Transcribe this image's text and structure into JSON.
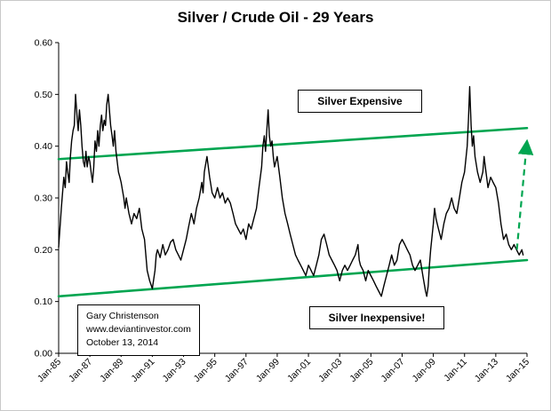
{
  "page": {
    "title": "Silver / Crude Oil - 29 Years"
  },
  "annotations": {
    "expensive": "Silver Expensive",
    "inexpensive": "Silver Inexpensive!",
    "credit": [
      "Gary Christenson",
      "www.deviantinvestor.com",
      "October 13, 2014"
    ]
  },
  "colors": {
    "line": "#000000",
    "trend": "#00A550",
    "axis": "#000000",
    "border": "#c9c9c9"
  },
  "chart_data": {
    "type": "line",
    "title": "Silver / Crude Oil - 29 Years",
    "xlabel": "",
    "ylabel": "",
    "xlim": [
      1985,
      2015
    ],
    "ylim": [
      0,
      0.6
    ],
    "grid": false,
    "legend": "none",
    "x_ticks": [
      "Jan-85",
      "Jan-87",
      "Jan-89",
      "Jan-91",
      "Jan-93",
      "Jan-95",
      "Jan-97",
      "Jan-99",
      "Jan-01",
      "Jan-03",
      "Jan-05",
      "Jan-07",
      "Jan-09",
      "Jan-11",
      "Jan-13",
      "Jan-15"
    ],
    "x_tick_years": [
      1985,
      1987,
      1989,
      1991,
      1993,
      1995,
      1997,
      1999,
      2001,
      2003,
      2005,
      2007,
      2009,
      2011,
      2013,
      2015
    ],
    "y_ticks": [
      "0.00",
      "0.10",
      "0.20",
      "0.30",
      "0.40",
      "0.50",
      "0.60"
    ],
    "series": [
      {
        "name": "Silver / Crude Oil ratio",
        "points": [
          [
            1985.0,
            0.205
          ],
          [
            1985.08,
            0.24
          ],
          [
            1985.17,
            0.28
          ],
          [
            1985.25,
            0.31
          ],
          [
            1985.33,
            0.34
          ],
          [
            1985.42,
            0.32
          ],
          [
            1985.5,
            0.37
          ],
          [
            1985.58,
            0.35
          ],
          [
            1985.67,
            0.33
          ],
          [
            1985.75,
            0.38
          ],
          [
            1985.83,
            0.41
          ],
          [
            1985.92,
            0.43
          ],
          [
            1986.0,
            0.44
          ],
          [
            1986.08,
            0.5
          ],
          [
            1986.17,
            0.46
          ],
          [
            1986.25,
            0.43
          ],
          [
            1986.33,
            0.47
          ],
          [
            1986.42,
            0.44
          ],
          [
            1986.5,
            0.4
          ],
          [
            1986.58,
            0.37
          ],
          [
            1986.67,
            0.36
          ],
          [
            1986.75,
            0.39
          ],
          [
            1986.83,
            0.36
          ],
          [
            1986.92,
            0.38
          ],
          [
            1987.0,
            0.37
          ],
          [
            1987.08,
            0.35
          ],
          [
            1987.17,
            0.33
          ],
          [
            1987.25,
            0.36
          ],
          [
            1987.33,
            0.41
          ],
          [
            1987.42,
            0.39
          ],
          [
            1987.5,
            0.43
          ],
          [
            1987.58,
            0.4
          ],
          [
            1987.67,
            0.44
          ],
          [
            1987.75,
            0.46
          ],
          [
            1987.83,
            0.43
          ],
          [
            1987.92,
            0.45
          ],
          [
            1988.0,
            0.44
          ],
          [
            1988.08,
            0.48
          ],
          [
            1988.17,
            0.5
          ],
          [
            1988.25,
            0.47
          ],
          [
            1988.33,
            0.44
          ],
          [
            1988.42,
            0.42
          ],
          [
            1988.5,
            0.4
          ],
          [
            1988.58,
            0.43
          ],
          [
            1988.67,
            0.39
          ],
          [
            1988.75,
            0.37
          ],
          [
            1988.83,
            0.35
          ],
          [
            1988.92,
            0.34
          ],
          [
            1989.0,
            0.33
          ],
          [
            1989.17,
            0.3
          ],
          [
            1989.25,
            0.28
          ],
          [
            1989.33,
            0.3
          ],
          [
            1989.5,
            0.27
          ],
          [
            1989.67,
            0.25
          ],
          [
            1989.83,
            0.27
          ],
          [
            1990.0,
            0.26
          ],
          [
            1990.17,
            0.28
          ],
          [
            1990.33,
            0.24
          ],
          [
            1990.5,
            0.22
          ],
          [
            1990.67,
            0.16
          ],
          [
            1990.83,
            0.14
          ],
          [
            1991.0,
            0.125
          ],
          [
            1991.17,
            0.16
          ],
          [
            1991.25,
            0.19
          ],
          [
            1991.33,
            0.2
          ],
          [
            1991.5,
            0.185
          ],
          [
            1991.67,
            0.21
          ],
          [
            1991.83,
            0.19
          ],
          [
            1992.0,
            0.2
          ],
          [
            1992.17,
            0.215
          ],
          [
            1992.33,
            0.22
          ],
          [
            1992.5,
            0.2
          ],
          [
            1992.67,
            0.19
          ],
          [
            1992.83,
            0.18
          ],
          [
            1993.0,
            0.2
          ],
          [
            1993.17,
            0.22
          ],
          [
            1993.33,
            0.245
          ],
          [
            1993.5,
            0.27
          ],
          [
            1993.67,
            0.25
          ],
          [
            1993.83,
            0.28
          ],
          [
            1994.0,
            0.3
          ],
          [
            1994.17,
            0.33
          ],
          [
            1994.25,
            0.31
          ],
          [
            1994.33,
            0.35
          ],
          [
            1994.5,
            0.38
          ],
          [
            1994.67,
            0.34
          ],
          [
            1994.83,
            0.31
          ],
          [
            1995.0,
            0.3
          ],
          [
            1995.17,
            0.32
          ],
          [
            1995.33,
            0.3
          ],
          [
            1995.5,
            0.31
          ],
          [
            1995.67,
            0.29
          ],
          [
            1995.83,
            0.3
          ],
          [
            1996.0,
            0.29
          ],
          [
            1996.17,
            0.27
          ],
          [
            1996.33,
            0.25
          ],
          [
            1996.5,
            0.24
          ],
          [
            1996.67,
            0.23
          ],
          [
            1996.83,
            0.24
          ],
          [
            1997.0,
            0.22
          ],
          [
            1997.17,
            0.25
          ],
          [
            1997.33,
            0.24
          ],
          [
            1997.5,
            0.26
          ],
          [
            1997.67,
            0.28
          ],
          [
            1997.83,
            0.32
          ],
          [
            1998.0,
            0.36
          ],
          [
            1998.08,
            0.4
          ],
          [
            1998.17,
            0.42
          ],
          [
            1998.25,
            0.39
          ],
          [
            1998.33,
            0.43
          ],
          [
            1998.42,
            0.47
          ],
          [
            1998.5,
            0.42
          ],
          [
            1998.58,
            0.4
          ],
          [
            1998.67,
            0.41
          ],
          [
            1998.75,
            0.38
          ],
          [
            1998.83,
            0.36
          ],
          [
            1999.0,
            0.38
          ],
          [
            1999.17,
            0.34
          ],
          [
            1999.33,
            0.3
          ],
          [
            1999.5,
            0.27
          ],
          [
            1999.67,
            0.25
          ],
          [
            1999.83,
            0.23
          ],
          [
            2000.0,
            0.21
          ],
          [
            2000.17,
            0.19
          ],
          [
            2000.33,
            0.18
          ],
          [
            2000.5,
            0.17
          ],
          [
            2000.67,
            0.16
          ],
          [
            2000.83,
            0.15
          ],
          [
            2001.0,
            0.17
          ],
          [
            2001.17,
            0.16
          ],
          [
            2001.33,
            0.15
          ],
          [
            2001.5,
            0.17
          ],
          [
            2001.67,
            0.19
          ],
          [
            2001.83,
            0.22
          ],
          [
            2002.0,
            0.23
          ],
          [
            2002.17,
            0.21
          ],
          [
            2002.33,
            0.19
          ],
          [
            2002.5,
            0.18
          ],
          [
            2002.67,
            0.17
          ],
          [
            2002.83,
            0.16
          ],
          [
            2003.0,
            0.14
          ],
          [
            2003.17,
            0.16
          ],
          [
            2003.33,
            0.17
          ],
          [
            2003.5,
            0.16
          ],
          [
            2003.67,
            0.17
          ],
          [
            2003.83,
            0.18
          ],
          [
            2004.0,
            0.19
          ],
          [
            2004.17,
            0.21
          ],
          [
            2004.25,
            0.18
          ],
          [
            2004.33,
            0.17
          ],
          [
            2004.5,
            0.16
          ],
          [
            2004.67,
            0.14
          ],
          [
            2004.83,
            0.16
          ],
          [
            2005.0,
            0.15
          ],
          [
            2005.17,
            0.14
          ],
          [
            2005.33,
            0.13
          ],
          [
            2005.5,
            0.12
          ],
          [
            2005.67,
            0.11
          ],
          [
            2005.83,
            0.13
          ],
          [
            2006.0,
            0.15
          ],
          [
            2006.17,
            0.17
          ],
          [
            2006.33,
            0.19
          ],
          [
            2006.5,
            0.17
          ],
          [
            2006.67,
            0.18
          ],
          [
            2006.83,
            0.21
          ],
          [
            2007.0,
            0.22
          ],
          [
            2007.17,
            0.21
          ],
          [
            2007.33,
            0.2
          ],
          [
            2007.5,
            0.19
          ],
          [
            2007.67,
            0.17
          ],
          [
            2007.83,
            0.16
          ],
          [
            2008.0,
            0.17
          ],
          [
            2008.17,
            0.18
          ],
          [
            2008.33,
            0.15
          ],
          [
            2008.5,
            0.12
          ],
          [
            2008.58,
            0.11
          ],
          [
            2008.67,
            0.13
          ],
          [
            2008.75,
            0.17
          ],
          [
            2008.83,
            0.2
          ],
          [
            2009.0,
            0.25
          ],
          [
            2009.08,
            0.28
          ],
          [
            2009.17,
            0.26
          ],
          [
            2009.33,
            0.24
          ],
          [
            2009.5,
            0.22
          ],
          [
            2009.67,
            0.25
          ],
          [
            2009.83,
            0.27
          ],
          [
            2010.0,
            0.28
          ],
          [
            2010.17,
            0.3
          ],
          [
            2010.33,
            0.28
          ],
          [
            2010.5,
            0.27
          ],
          [
            2010.67,
            0.3
          ],
          [
            2010.83,
            0.33
          ],
          [
            2011.0,
            0.35
          ],
          [
            2011.17,
            0.4
          ],
          [
            2011.25,
            0.45
          ],
          [
            2011.33,
            0.515
          ],
          [
            2011.42,
            0.44
          ],
          [
            2011.5,
            0.4
          ],
          [
            2011.58,
            0.42
          ],
          [
            2011.67,
            0.38
          ],
          [
            2011.83,
            0.35
          ],
          [
            2012.0,
            0.33
          ],
          [
            2012.17,
            0.35
          ],
          [
            2012.25,
            0.38
          ],
          [
            2012.33,
            0.36
          ],
          [
            2012.5,
            0.32
          ],
          [
            2012.67,
            0.34
          ],
          [
            2012.83,
            0.33
          ],
          [
            2013.0,
            0.32
          ],
          [
            2013.17,
            0.29
          ],
          [
            2013.33,
            0.25
          ],
          [
            2013.5,
            0.22
          ],
          [
            2013.67,
            0.23
          ],
          [
            2013.83,
            0.21
          ],
          [
            2014.0,
            0.2
          ],
          [
            2014.17,
            0.21
          ],
          [
            2014.33,
            0.2
          ],
          [
            2014.5,
            0.19
          ],
          [
            2014.67,
            0.2
          ],
          [
            2014.75,
            0.19
          ]
        ]
      }
    ],
    "trendlines": [
      {
        "name": "lower-trendline",
        "from": [
          1985,
          0.11
        ],
        "to": [
          2015,
          0.18
        ]
      },
      {
        "name": "upper-trendline",
        "from": [
          1985,
          0.375
        ],
        "to": [
          2015,
          0.435
        ]
      }
    ],
    "projection_arrow": {
      "from": [
        2014.35,
        0.2
      ],
      "to": [
        2015.0,
        0.41
      ],
      "style": "dashed"
    }
  }
}
